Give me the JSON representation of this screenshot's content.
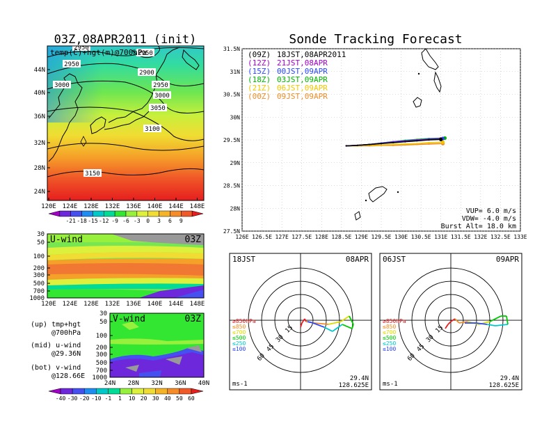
{
  "left_title": "03Z,08APR2011 (init)",
  "main_title": "Sonde Tracking Forecast",
  "map_panel": {
    "label": "temp(C)+hgt(m)@700hPa",
    "lat_ticks": [
      "44N",
      "40N",
      "36N",
      "32N",
      "28N",
      "24N"
    ],
    "lon_ticks": [
      "120E",
      "124E",
      "128E",
      "132E",
      "136E",
      "140E",
      "144E",
      "148E"
    ],
    "contour_labels": [
      "2950",
      "2950",
      "2900",
      "2950",
      "3000",
      "3000",
      "3050",
      "3100",
      "3150",
      "2950"
    ],
    "colorbar_labels": [
      "-21",
      "-18",
      "-15",
      "-12",
      "-9",
      "-6",
      "-3",
      "0",
      "3",
      "6",
      "9"
    ],
    "colorbar_colors": [
      "#a000c8",
      "#6e28dc",
      "#4650f0",
      "#1e8cf0",
      "#00c8c8",
      "#00dc96",
      "#32e632",
      "#96f03c",
      "#dcf03c",
      "#f0dc32",
      "#f5b428",
      "#f58c28",
      "#f05a28",
      "#e61e1e"
    ]
  },
  "u_panel": {
    "label": "U-wind",
    "time": "03Z",
    "y_ticks": [
      "30",
      "50",
      "100",
      "200",
      "300",
      "500",
      "700",
      "1000"
    ],
    "x_ticks": [
      "120E",
      "124E",
      "128E",
      "132E",
      "136E",
      "140E",
      "144E",
      "148E"
    ]
  },
  "v_panel": {
    "label": "V-wind",
    "time": "03Z",
    "y_ticks": [
      "30",
      "50",
      "100",
      "200",
      "300",
      "500",
      "700",
      "1000"
    ],
    "x_ticks": [
      "24N",
      "28N",
      "32N",
      "36N",
      "40N"
    ]
  },
  "descriptions": [
    {
      "line1": "(up) tmp+hgt",
      "line2": "@700hPa"
    },
    {
      "line1": "(mid) u-wind",
      "line2": "@29.36N"
    },
    {
      "line1": "(bot) v-wind",
      "line2": "@128.66E"
    }
  ],
  "wind_colorbar": {
    "labels": [
      "-40",
      "-30",
      "-20",
      "-10",
      "-1",
      "1",
      "10",
      "20",
      "30",
      "40",
      "50",
      "60"
    ],
    "colors": [
      "#a000c8",
      "#6e28dc",
      "#4650f0",
      "#1e8cf0",
      "#00c8c8",
      "#00dc96",
      "#96f03c",
      "#dcf03c",
      "#f0dc32",
      "#f5b428",
      "#f58c28",
      "#f05a28",
      "#e61e1e"
    ]
  },
  "track_panel": {
    "legend": [
      {
        "code": "(09Z)",
        "time": "18JST,08APR2011",
        "color": "#000000"
      },
      {
        "code": "(12Z)",
        "time": "21JST,08APR",
        "color": "#a000c8"
      },
      {
        "code": "(15Z)",
        "time": "00JST,09APR",
        "color": "#2846ff"
      },
      {
        "code": "(18Z)",
        "time": "03JST,09APR",
        "color": "#00b400"
      },
      {
        "code": "(21Z)",
        "time": "06JST,09APR",
        "color": "#f0c800"
      },
      {
        "code": "(00Z)",
        "time": "09JST,09APR",
        "color": "#f08c28"
      }
    ],
    "params": [
      "VUP=  6.0  m/s",
      "VDW= -4.0  m/s",
      "Burst Alt=  18.0  km"
    ]
  },
  "hodo_left": {
    "time": "18JST",
    "date": "08APR",
    "lat": "29.4N",
    "lon": "128.625E",
    "unit": "ms-1"
  },
  "hodo_right": {
    "time": "06JST",
    "date": "09APR",
    "lat": "29.4N",
    "lon": "128.625E",
    "unit": "ms-1"
  },
  "hodo_rings": [
    "15",
    "30",
    "45",
    "60"
  ],
  "hodo_legend": [
    {
      "label": "≥850hPa",
      "color": "#e61e1e"
    },
    {
      "label": "≤850",
      "color": "#f08c28"
    },
    {
      "label": "≤700",
      "color": "#dcdc00"
    },
    {
      "label": "≤500",
      "color": "#00c800"
    },
    {
      "label": "≤250",
      "color": "#00c8c8"
    },
    {
      "label": "≤100",
      "color": "#2846ff"
    }
  ],
  "chart_data": {
    "type": "line",
    "title": "Sonde Tracking Forecast",
    "xlim": [
      126,
      133
    ],
    "ylim": [
      27.5,
      31.5
    ],
    "x_ticks": [
      "126E",
      "126.5E",
      "127E",
      "127.5E",
      "128E",
      "128.5E",
      "129E",
      "129.5E",
      "130E",
      "130.5E",
      "131E",
      "131.5E",
      "132E",
      "132.5E",
      "133E"
    ],
    "y_ticks": [
      "27.5N",
      "28N",
      "28.5N",
      "29N",
      "29.5N",
      "30N",
      "30.5N",
      "31N",
      "31.5N"
    ],
    "series": [
      {
        "name": "(09Z) 18JST,08APR2011",
        "color": "#000000",
        "x": [
          128.62,
          128.9,
          129.2,
          129.5,
          129.8,
          130.1,
          130.4,
          130.7,
          131.0
        ],
        "y": [
          29.37,
          29.38,
          29.4,
          29.42,
          29.44,
          29.46,
          29.48,
          29.5,
          29.51
        ]
      },
      {
        "name": "(12Z) 21JST,08APR",
        "color": "#a000c8",
        "x": [
          128.62,
          128.9,
          129.2,
          129.5,
          129.8,
          130.1,
          130.4,
          130.7,
          131.0
        ],
        "y": [
          29.37,
          29.38,
          29.4,
          29.42,
          29.45,
          29.47,
          29.49,
          29.51,
          29.52
        ]
      },
      {
        "name": "(15Z) 00JST,09APR",
        "color": "#2846ff",
        "x": [
          128.62,
          128.9,
          129.2,
          129.5,
          129.8,
          130.1,
          130.4,
          130.7,
          131.05
        ],
        "y": [
          29.37,
          29.38,
          29.4,
          29.43,
          29.46,
          29.48,
          29.5,
          29.52,
          29.53
        ]
      },
      {
        "name": "(18Z) 03JST,09APR",
        "color": "#00b400",
        "x": [
          128.62,
          128.9,
          129.2,
          129.5,
          129.8,
          130.1,
          130.4,
          130.7,
          131.1
        ],
        "y": [
          29.37,
          29.38,
          29.4,
          29.43,
          29.46,
          29.49,
          29.51,
          29.53,
          29.54
        ]
      },
      {
        "name": "(21Z) 06JST,09APR",
        "color": "#f0c800",
        "x": [
          128.62,
          128.9,
          129.2,
          129.5,
          129.8,
          130.1,
          130.4,
          130.7,
          131.05
        ],
        "y": [
          29.37,
          29.37,
          29.38,
          29.39,
          29.4,
          29.41,
          29.42,
          29.44,
          29.45
        ]
      },
      {
        "name": "(00Z) 09JST,09APR",
        "color": "#f08c28",
        "x": [
          128.62,
          128.9,
          129.2,
          129.5,
          129.8,
          130.1,
          130.4,
          130.7,
          131.05
        ],
        "y": [
          29.37,
          29.37,
          29.37,
          29.38,
          29.38,
          29.39,
          29.4,
          29.41,
          29.42
        ]
      }
    ]
  }
}
